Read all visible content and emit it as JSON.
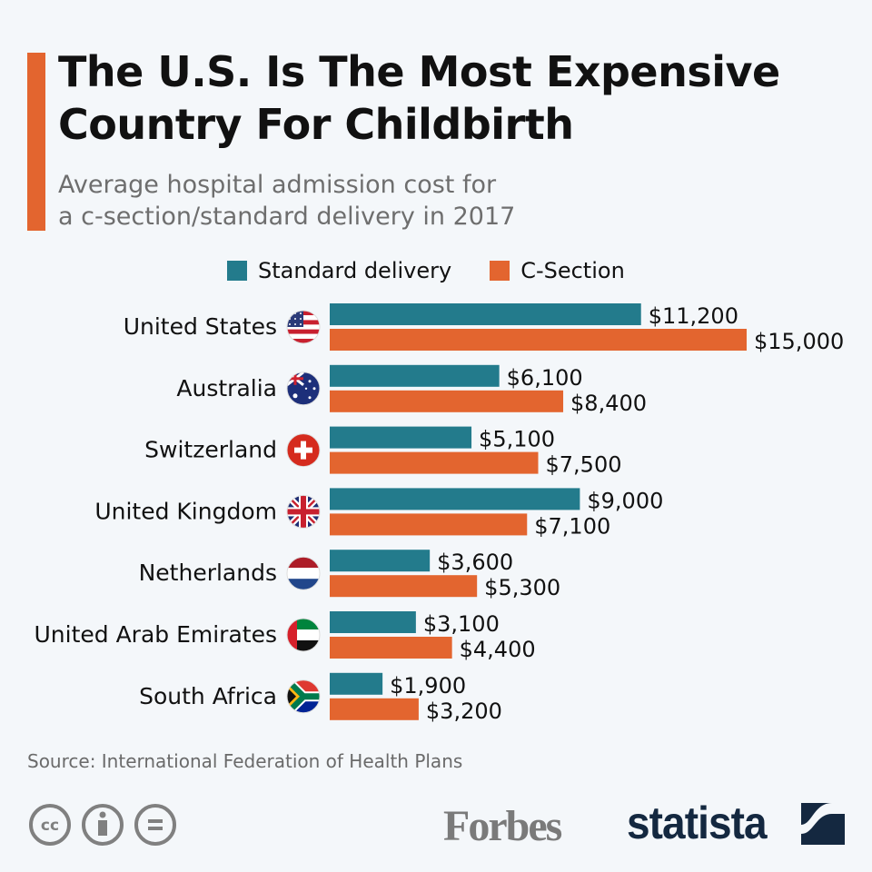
{
  "title": "The U.S. Is The Most Expensive Country For Childbirth",
  "subtitle_line1": "Average hospital admission cost for",
  "subtitle_line2": "a c-section/standard delivery in 2017",
  "colors": {
    "standard": "#237b8c",
    "csection": "#e3652f",
    "accent": "#e3652f",
    "background": "#f4f7fa"
  },
  "chart_data": {
    "type": "bar",
    "orientation": "horizontal",
    "categories": [
      "United States",
      "Australia",
      "Switzerland",
      "United Kingdom",
      "Netherlands",
      "United Arab Emirates",
      "South Africa"
    ],
    "series": [
      {
        "name": "Standard delivery",
        "values": [
          11200,
          6100,
          5100,
          9000,
          3600,
          3100,
          1900
        ],
        "labels": [
          "$11,200",
          "$6,100",
          "$5,100",
          "$9,000",
          "$3,600",
          "$3,100",
          "$1,900"
        ]
      },
      {
        "name": "C-Section",
        "values": [
          15000,
          8400,
          7500,
          7100,
          5300,
          4400,
          3200
        ],
        "labels": [
          "$15,000",
          "$8,400",
          "$7,500",
          "$7,100",
          "$5,300",
          "$4,400",
          "$3,200"
        ]
      }
    ],
    "legend": "top",
    "grid": false,
    "xlim": [
      0,
      15000
    ]
  },
  "flags": [
    "us-flag-icon",
    "australia-flag-icon",
    "switzerland-flag-icon",
    "uk-flag-icon",
    "netherlands-flag-icon",
    "uae-flag-icon",
    "south-africa-flag-icon"
  ],
  "source": "Source: International Federation of Health Plans",
  "logos": {
    "forbes": "Forbes",
    "statista": "statista"
  }
}
